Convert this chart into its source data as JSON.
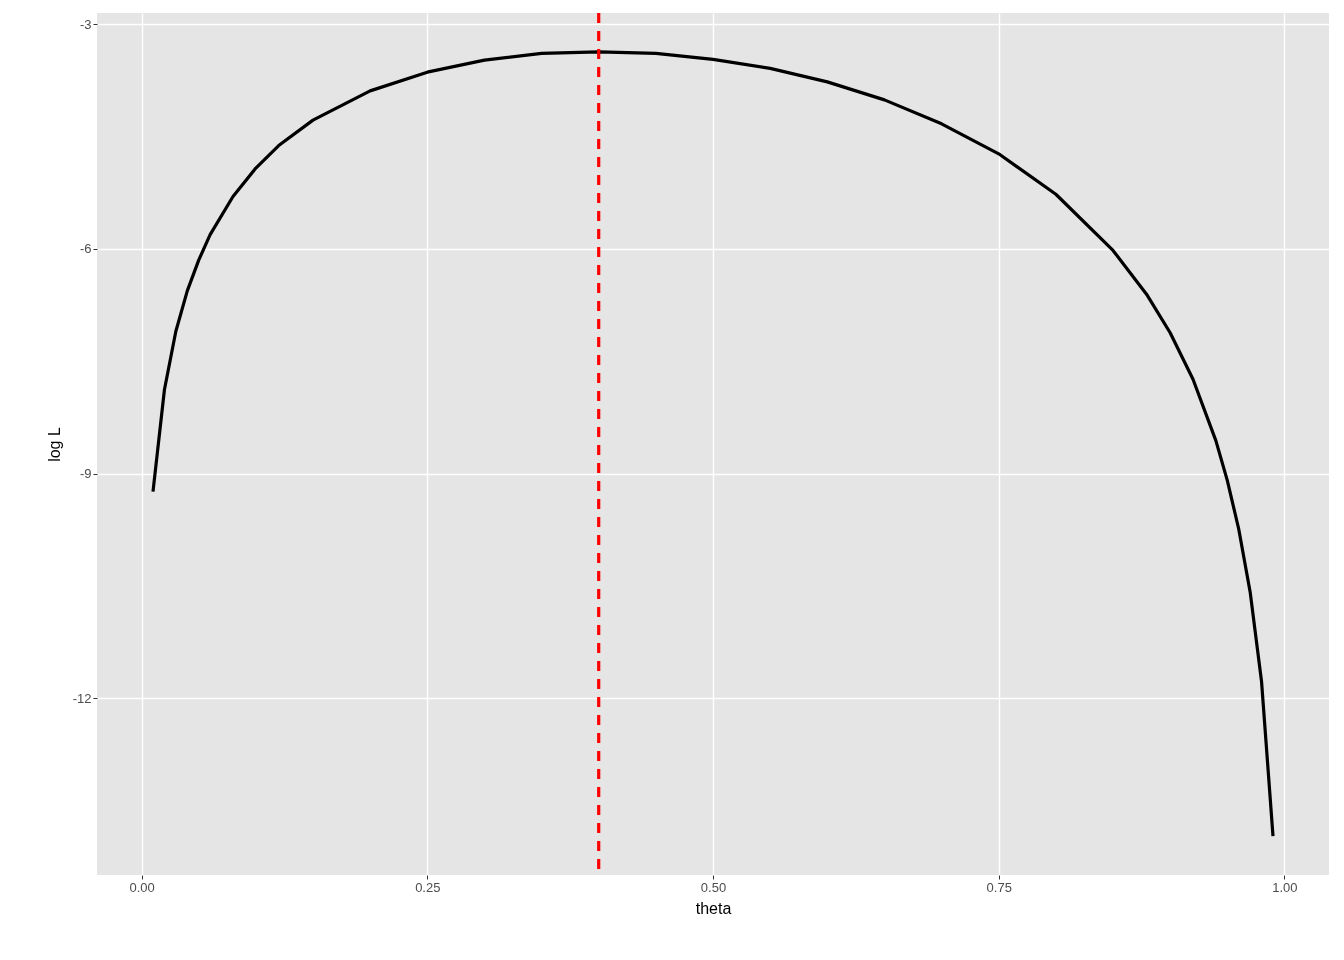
{
  "chart_data": {
    "type": "line",
    "xlabel": "theta",
    "ylabel": "log L",
    "x": [
      0.01,
      0.02,
      0.03,
      0.04,
      0.05,
      0.06,
      0.08,
      0.1,
      0.12,
      0.15,
      0.2,
      0.25,
      0.3,
      0.35,
      0.4,
      0.45,
      0.5,
      0.55,
      0.6,
      0.65,
      0.7,
      0.75,
      0.8,
      0.85,
      0.88,
      0.9,
      0.92,
      0.94,
      0.95,
      0.96,
      0.97,
      0.98,
      0.99
    ],
    "series": [
      {
        "color": "#000000",
        "values": [
          -9.24,
          -7.88,
          -7.1,
          -6.56,
          -6.15,
          -5.81,
          -5.3,
          -4.92,
          -4.62,
          -4.28,
          -3.89,
          -3.64,
          -3.48,
          -3.39,
          -3.37,
          -3.39,
          -3.47,
          -3.59,
          -3.77,
          -4.01,
          -4.33,
          -4.73,
          -5.27,
          -6.02,
          -6.62,
          -7.12,
          -7.74,
          -8.56,
          -9.09,
          -9.74,
          -10.58,
          -11.78,
          -13.84
        ]
      }
    ],
    "xlim": [
      -0.039,
      1.039
    ],
    "ylim": [
      -14.36,
      -2.85
    ],
    "xticks": [
      {
        "value": 0,
        "label": "0.00"
      },
      0.25,
      {
        "value": 0.5,
        "label": "0.50"
      },
      0.75,
      {
        "value": 1,
        "label": "1.00"
      }
    ],
    "yticks": [
      -3,
      -6,
      -9,
      -12
    ],
    "grid": true,
    "line_style": "solid",
    "ref_lines": [
      {
        "axis": "x",
        "value": 0.4,
        "color": "#ff0000",
        "line_style": "dashed"
      }
    ]
  }
}
